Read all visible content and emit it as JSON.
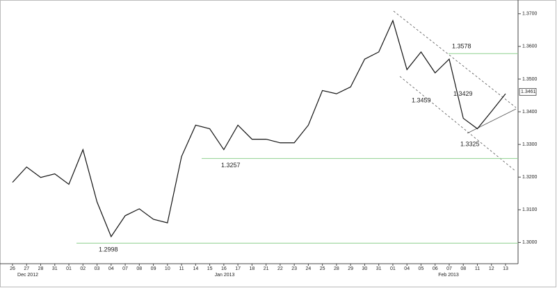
{
  "chart_data": {
    "type": "line",
    "categories": [
      "26",
      "27",
      "28",
      "31",
      "01",
      "02",
      "03",
      "04",
      "07",
      "08",
      "09",
      "10",
      "11",
      "14",
      "15",
      "16",
      "17",
      "18",
      "21",
      "22",
      "23",
      "24",
      "25",
      "28",
      "29",
      "30",
      "31",
      "01",
      "04",
      "05",
      "06",
      "07",
      "08",
      "11",
      "12",
      "13"
    ],
    "x_group_labels": [
      "Dec 2012",
      "Jan 2013",
      "Feb 2013"
    ],
    "series": [
      {
        "color": "#111111",
        "values": [
          1.3184,
          1.3231,
          1.3199,
          1.321,
          1.3178,
          1.3284,
          1.3124,
          1.3018,
          1.3082,
          1.3103,
          1.3071,
          1.306,
          1.3263,
          1.3359,
          1.3348,
          1.3284,
          1.3359,
          1.3316,
          1.3316,
          1.3305,
          1.3305,
          1.3359,
          1.3465,
          1.3455,
          1.3476,
          1.3561,
          1.3583,
          1.3679,
          1.3529,
          1.3583,
          1.3519,
          1.3561,
          1.338,
          1.3348,
          1.3401,
          1.3455
        ]
      }
    ],
    "annotations": [
      1.3578,
      1.3459,
      1.3429,
      1.3325,
      1.3257,
      1.2998
    ],
    "last_price": 1.3461,
    "ylim": [
      1.2935,
      1.3742
    ],
    "yticks": [
      {
        "value": 1.3,
        "label": "1.3000"
      },
      {
        "value": 1.31,
        "label": "1.3100"
      },
      {
        "value": 1.32,
        "label": "1.3200"
      },
      {
        "value": 1.33,
        "label": "1.3300"
      },
      {
        "value": 1.34,
        "label": "1.3400"
      },
      {
        "value": 1.35,
        "label": "1.3500"
      },
      {
        "value": 1.36,
        "label": "1.3600"
      },
      {
        "value": 1.37,
        "label": "1.3700"
      }
    ],
    "line_color": "#8fd18f"
  }
}
